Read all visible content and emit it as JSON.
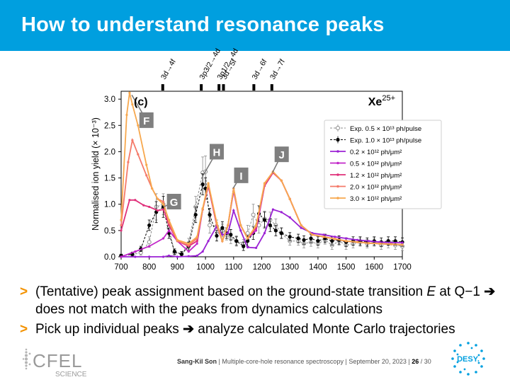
{
  "slide": {
    "title": "How to understand resonance peaks",
    "bullets": [
      {
        "pre": "(Tentative) peak assignment based on the ground-state transition ",
        "em": "E",
        "post": " at Q−1 ",
        "arrow": "➔",
        "post2": " does not match with the peaks from dynamics calculations"
      },
      {
        "pre": "Pick up individual peaks ",
        "arrow": "➔",
        "post": " analyze calculated Monte Carlo trajectories"
      }
    ],
    "bullet_marker": ">",
    "accent_color": "#f39200",
    "title_bar_color": "#009fdf"
  },
  "footer": {
    "author": "Sang-Kil Son",
    "talk": "Multiple-core-hole resonance spectroscopy",
    "date": "September 20, 2023",
    "page": "26",
    "total": "30"
  },
  "logos": {
    "cfel_text": "CFEL",
    "cfel_sub": "SCIENCE",
    "desy_text": "DESY."
  },
  "chart_data": {
    "type": "line",
    "panel_label": "(c)",
    "ion_label": "Xe",
    "ion_charge": "25+",
    "ylabel": "Normalised ion yield (× 10⁻³)",
    "xlim": [
      700,
      1700
    ],
    "ylim": [
      0,
      3.15
    ],
    "xticks": [
      700,
      800,
      900,
      1000,
      1100,
      1200,
      1300,
      1400,
      1500,
      1600,
      1700
    ],
    "yticks": [
      "0.0",
      "0.5",
      "1.0",
      "1.5",
      "2.0",
      "2.5",
      "3.0"
    ],
    "transitions": [
      {
        "label": "3d→4f",
        "x": 848
      },
      {
        "label": "3p3/2→4d",
        "x": 985
      },
      {
        "label": "3p1/2→4d",
        "x": 1048
      },
      {
        "label": "3d→5f",
        "x": 1064
      },
      {
        "label": "3d→6f",
        "x": 1172
      },
      {
        "label": "3d→7f",
        "x": 1236
      }
    ],
    "peak_labels": [
      {
        "label": "F",
        "x": 790,
        "y": 2.6,
        "tx": 738,
        "ty": 3.08
      },
      {
        "label": "G",
        "x": 888,
        "y": 1.05,
        "tx": 852,
        "ty": 0.95
      },
      {
        "label": "H",
        "x": 1040,
        "y": 2.0,
        "tx": 992,
        "ty": 1.55
      },
      {
        "label": "I",
        "x": 1127,
        "y": 1.55,
        "tx": 1098,
        "ty": 1.3
      },
      {
        "label": "J",
        "x": 1271,
        "y": 1.95,
        "tx": 1238,
        "ty": 1.6
      }
    ],
    "series": [
      {
        "name": "Exp. 0.5 × 10¹³ ph/pulse",
        "color": "#8c8c8c",
        "style": "exp-open",
        "x": [
          700,
          740,
          770,
          800,
          825,
          850,
          870,
          890,
          915,
          940,
          965,
          990,
          1000,
          1015,
          1040,
          1060,
          1075,
          1090,
          1110,
          1135,
          1150,
          1170,
          1190,
          1210,
          1230,
          1250,
          1270,
          1300,
          1330,
          1350,
          1375,
          1400,
          1425,
          1450,
          1475,
          1500,
          1525,
          1550,
          1575,
          1600,
          1625,
          1650,
          1675,
          1700
        ],
        "y": [
          0.02,
          0.04,
          0.08,
          0.28,
          0.95,
          1.0,
          0.55,
          0.08,
          0.05,
          0.25,
          0.95,
          1.6,
          1.62,
          0.6,
          0.58,
          0.5,
          0.42,
          0.35,
          0.3,
          0.25,
          0.45,
          0.8,
          0.6,
          0.72,
          0.7,
          0.6,
          0.45,
          0.3,
          0.3,
          0.25,
          0.28,
          0.25,
          0.32,
          0.22,
          0.3,
          0.22,
          0.25,
          0.28,
          0.25,
          0.28,
          0.22,
          0.25,
          0.22,
          0.2
        ],
        "err": [
          0.03,
          0.03,
          0.05,
          0.1,
          0.25,
          0.2,
          0.15,
          0.05,
          0.05,
          0.1,
          0.2,
          0.3,
          0.3,
          0.15,
          0.12,
          0.12,
          0.1,
          0.1,
          0.1,
          0.08,
          0.15,
          0.2,
          0.15,
          0.15,
          0.15,
          0.12,
          0.1,
          0.08,
          0.08,
          0.08,
          0.08,
          0.08,
          0.08,
          0.08,
          0.08,
          0.08,
          0.08,
          0.08,
          0.08,
          0.08,
          0.08,
          0.08,
          0.08,
          0.08
        ]
      },
      {
        "name": "Exp. 1.0 × 10¹³ ph/pulse",
        "color": "#000000",
        "style": "exp-filled",
        "x": [
          700,
          740,
          770,
          800,
          825,
          850,
          870,
          890,
          915,
          940,
          965,
          990,
          1000,
          1015,
          1040,
          1060,
          1075,
          1090,
          1110,
          1135,
          1150,
          1170,
          1190,
          1210,
          1230,
          1250,
          1270,
          1300,
          1330,
          1350,
          1375,
          1400,
          1425,
          1450,
          1475,
          1500,
          1525,
          1550,
          1575,
          1600,
          1625,
          1650,
          1675,
          1700
        ],
        "y": [
          0.02,
          0.05,
          0.15,
          0.6,
          0.85,
          0.95,
          0.45,
          0.1,
          0.05,
          0.2,
          0.8,
          1.38,
          1.3,
          0.8,
          0.4,
          0.55,
          0.45,
          0.42,
          0.3,
          0.2,
          0.3,
          0.45,
          0.82,
          0.7,
          0.6,
          0.5,
          0.45,
          0.38,
          0.35,
          0.32,
          0.35,
          0.3,
          0.35,
          0.3,
          0.32,
          0.28,
          0.3,
          0.3,
          0.28,
          0.3,
          0.28,
          0.3,
          0.3,
          0.28
        ],
        "err": [
          0.03,
          0.04,
          0.05,
          0.1,
          0.2,
          0.2,
          0.1,
          0.05,
          0.05,
          0.08,
          0.15,
          0.2,
          0.2,
          0.12,
          0.1,
          0.12,
          0.1,
          0.1,
          0.08,
          0.08,
          0.1,
          0.12,
          0.15,
          0.15,
          0.12,
          0.1,
          0.1,
          0.08,
          0.08,
          0.08,
          0.08,
          0.08,
          0.08,
          0.08,
          0.08,
          0.08,
          0.08,
          0.08,
          0.08,
          0.08,
          0.08,
          0.08,
          0.08,
          0.08
        ]
      },
      {
        "name": "0.2 × 10¹² ph/μm²",
        "color": "#9b22d4",
        "style": "calc",
        "x": [
          700,
          750,
          800,
          850,
          870,
          900,
          940,
          970,
          990,
          1010,
          1040,
          1060,
          1080,
          1100,
          1125,
          1150,
          1180,
          1210,
          1240,
          1270,
          1300,
          1340,
          1380,
          1420,
          1460,
          1500,
          1540,
          1580,
          1620,
          1660,
          1700
        ],
        "y": [
          0.0,
          0.0,
          0.0,
          0.0,
          0.02,
          0.0,
          0.01,
          0.02,
          0.1,
          0.3,
          0.58,
          0.42,
          0.45,
          0.88,
          0.5,
          0.18,
          0.17,
          0.45,
          0.9,
          0.85,
          0.75,
          0.55,
          0.45,
          0.42,
          0.38,
          0.35,
          0.32,
          0.3,
          0.28,
          0.27,
          0.27
        ]
      },
      {
        "name": "0.5 × 10¹² ph/μm²",
        "color": "#c226c9",
        "style": "calc",
        "x": [
          700,
          750,
          800,
          850,
          870,
          900,
          940,
          970,
          990,
          1010,
          1040,
          1060,
          1080,
          1100,
          1125,
          1150,
          1180,
          1210,
          1240,
          1270,
          1300,
          1340,
          1380,
          1420,
          1460,
          1500,
          1540,
          1580,
          1620,
          1660,
          1700
        ],
        "y": [
          0.0,
          0.1,
          0.2,
          0.35,
          0.5,
          0.3,
          0.1,
          0.25,
          0.9,
          1.35,
          0.6,
          0.3,
          0.6,
          1.25,
          0.6,
          0.35,
          0.5,
          1.35,
          1.6,
          1.45,
          1.1,
          0.6,
          0.42,
          0.38,
          0.34,
          0.3,
          0.28,
          0.26,
          0.25,
          0.24,
          0.23
        ]
      },
      {
        "name": "1.2 × 10¹² ph/μm²",
        "color": "#e0307a",
        "style": "calc",
        "x": [
          700,
          730,
          750,
          780,
          800,
          830,
          850,
          870,
          900,
          940,
          970,
          990,
          1010,
          1040,
          1060,
          1080,
          1100,
          1125,
          1150,
          1180,
          1210,
          1240,
          1270,
          1300,
          1340,
          1380,
          1420,
          1460,
          1500,
          1540,
          1580,
          1620,
          1660,
          1700
        ],
        "y": [
          0.5,
          1.08,
          1.08,
          0.98,
          0.95,
          0.88,
          0.9,
          0.6,
          0.3,
          0.2,
          0.3,
          0.9,
          1.35,
          0.6,
          0.3,
          0.6,
          1.3,
          0.6,
          0.35,
          0.55,
          1.35,
          1.6,
          1.45,
          1.1,
          0.6,
          0.42,
          0.38,
          0.34,
          0.3,
          0.28,
          0.26,
          0.25,
          0.24,
          0.23
        ]
      },
      {
        "name": "2.0 × 10¹² ph/μm²",
        "color": "#f47a6a",
        "style": "calc",
        "x": [
          700,
          725,
          740,
          760,
          790,
          810,
          830,
          850,
          870,
          900,
          940,
          970,
          990,
          1010,
          1040,
          1060,
          1080,
          1100,
          1125,
          1150,
          1180,
          1210,
          1240,
          1270,
          1300,
          1340,
          1380,
          1420,
          1460,
          1500,
          1540,
          1580,
          1620,
          1660,
          1700
        ],
        "y": [
          0.6,
          1.8,
          2.22,
          1.95,
          1.55,
          1.3,
          1.1,
          1.05,
          0.65,
          0.3,
          0.22,
          0.35,
          0.9,
          1.38,
          0.62,
          0.3,
          0.6,
          1.3,
          0.6,
          0.35,
          0.58,
          1.38,
          1.62,
          1.45,
          1.1,
          0.6,
          0.42,
          0.38,
          0.34,
          0.3,
          0.28,
          0.26,
          0.25,
          0.24,
          0.23
        ]
      },
      {
        "name": "3.0 × 10¹² ph/μm²",
        "color": "#f7a84e",
        "style": "calc",
        "x": [
          700,
          720,
          730,
          740,
          760,
          790,
          810,
          830,
          850,
          870,
          900,
          940,
          970,
          990,
          1010,
          1040,
          1060,
          1080,
          1100,
          1125,
          1150,
          1180,
          1210,
          1240,
          1270,
          1300,
          1340,
          1380,
          1420,
          1460,
          1500,
          1540,
          1580,
          1620,
          1660,
          1700
        ],
        "y": [
          0.7,
          2.7,
          3.12,
          2.9,
          2.5,
          1.75,
          1.3,
          1.1,
          1.0,
          0.7,
          0.32,
          0.25,
          0.38,
          0.92,
          1.4,
          0.65,
          0.3,
          0.6,
          1.3,
          0.6,
          0.35,
          0.6,
          1.4,
          1.62,
          1.45,
          1.1,
          0.6,
          0.42,
          0.38,
          0.34,
          0.3,
          0.28,
          0.26,
          0.25,
          0.24,
          0.23
        ]
      }
    ]
  }
}
